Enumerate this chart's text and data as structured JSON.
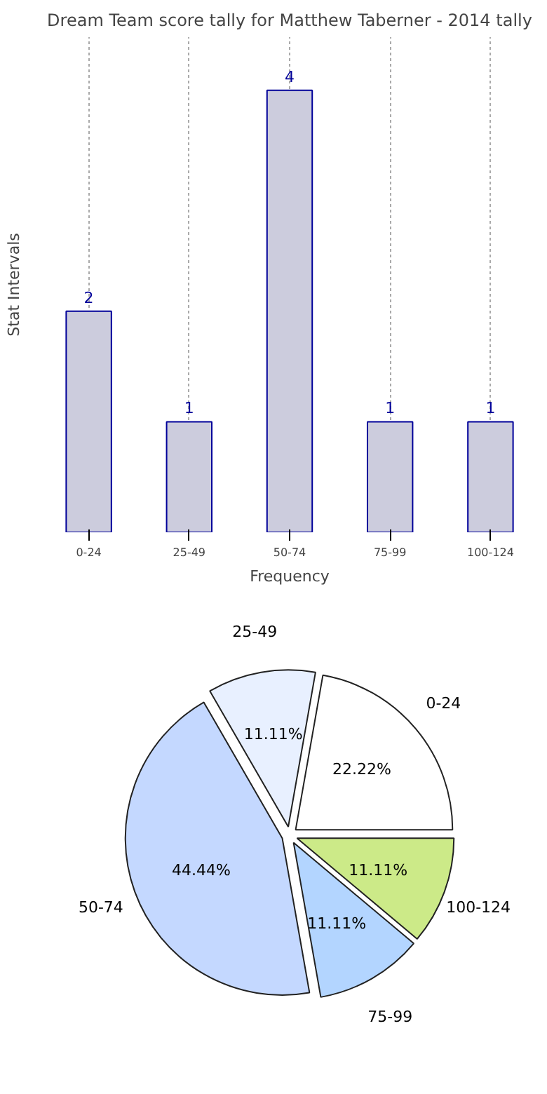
{
  "chart_data": [
    {
      "type": "bar",
      "title": "Dream Team score tally for Matthew Taberner - 2014 tally",
      "xlabel": "Frequency",
      "ylabel": "Stat Intervals",
      "categories": [
        "0-24",
        "25-49",
        "50-74",
        "75-99",
        "100-124"
      ],
      "values": [
        2,
        1,
        4,
        1,
        1
      ],
      "color": "#ccccdd",
      "data_labels": true,
      "grid": "x"
    },
    {
      "type": "pie",
      "categories": [
        "0-24",
        "25-49",
        "50-74",
        "75-99",
        "100-124"
      ],
      "values": [
        22.22,
        11.11,
        44.44,
        11.11,
        11.11
      ],
      "colors": [
        "#ffffff",
        "#e8f0ff",
        "#c4d8ff",
        "#b3d5ff",
        "#ccea88"
      ],
      "value_labels": [
        "22.22%",
        "11.11%",
        "44.44%",
        "11.11%",
        "11.11%"
      ]
    }
  ]
}
